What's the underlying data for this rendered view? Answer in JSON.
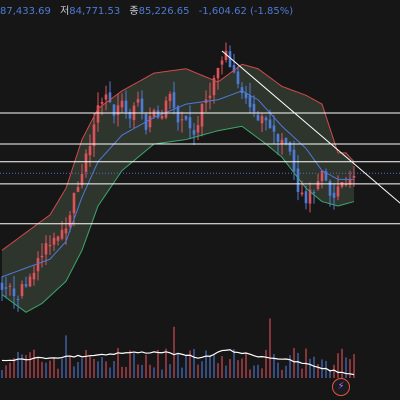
{
  "header": {
    "high_value": "87,433.69",
    "low_label": "저",
    "low_value": "84,771.53",
    "close_label": "종",
    "close_value": "85,226.65",
    "change_text": "-1,604.62 (-1.85%)"
  },
  "colors": {
    "background": "#161616",
    "up_candle": "#e0525a",
    "down_candle": "#4f7ad6",
    "bb_upper": "#d24a4a",
    "bb_lower": "#3aa86a",
    "bb_fill": "#4a5a4a",
    "bb_mid": "#4f7ad6",
    "level_line": "#ffffff",
    "volume_line": "#ffffff",
    "current_price_line": "#5a6ad0"
  },
  "icons": {
    "replay_button": "lightning-bolt-icon"
  },
  "chart_data": {
    "type": "candlestick",
    "indicators": [
      "bollinger_bands",
      "volume"
    ],
    "horizontal_levels": [
      94.5,
      91.0,
      89.0,
      86.5,
      82.0
    ],
    "current_price": 87.7,
    "trendline": {
      "from": [
        55,
        101.5
      ],
      "to": [
        95,
        85.5
      ]
    },
    "ylim": [
      70,
      105
    ],
    "upper_band": [
      [
        0,
        79
      ],
      [
        6,
        81
      ],
      [
        12,
        83
      ],
      [
        16,
        86
      ],
      [
        20,
        91.5
      ],
      [
        24,
        95
      ],
      [
        30,
        97
      ],
      [
        38,
        99
      ],
      [
        46,
        99.5
      ],
      [
        54,
        98
      ],
      [
        60,
        100
      ],
      [
        64,
        99.5
      ],
      [
        70,
        97.5
      ],
      [
        76,
        96.5
      ],
      [
        80,
        95.5
      ],
      [
        84,
        90
      ],
      [
        86,
        90
      ],
      [
        88,
        89
      ]
    ],
    "lower_band": [
      [
        0,
        74
      ],
      [
        6,
        72
      ],
      [
        10,
        73
      ],
      [
        16,
        75.5
      ],
      [
        20,
        79
      ],
      [
        24,
        84
      ],
      [
        30,
        88
      ],
      [
        38,
        91
      ],
      [
        46,
        91.5
      ],
      [
        54,
        92.5
      ],
      [
        60,
        93
      ],
      [
        66,
        91
      ],
      [
        70,
        89.5
      ],
      [
        76,
        86
      ],
      [
        80,
        84.5
      ],
      [
        84,
        84
      ],
      [
        88,
        84.5
      ]
    ],
    "mid_band": [
      [
        0,
        76
      ],
      [
        6,
        77
      ],
      [
        12,
        78
      ],
      [
        16,
        80
      ],
      [
        20,
        85
      ],
      [
        24,
        89
      ],
      [
        30,
        92
      ],
      [
        38,
        94
      ],
      [
        46,
        95.5
      ],
      [
        54,
        96
      ],
      [
        60,
        97
      ],
      [
        64,
        96
      ],
      [
        70,
        93
      ],
      [
        76,
        90.5
      ],
      [
        80,
        88
      ],
      [
        84,
        87
      ],
      [
        88,
        87
      ]
    ],
    "price_path": [
      [
        0,
        75
      ],
      [
        4,
        74
      ],
      [
        8,
        77
      ],
      [
        12,
        80
      ],
      [
        14,
        81
      ],
      [
        16,
        82
      ],
      [
        18,
        85
      ],
      [
        20,
        88
      ],
      [
        22,
        91
      ],
      [
        24,
        95
      ],
      [
        26,
        97
      ],
      [
        28,
        94.5
      ],
      [
        30,
        95.5
      ],
      [
        32,
        94
      ],
      [
        34,
        96
      ],
      [
        36,
        93
      ],
      [
        38,
        95
      ],
      [
        40,
        94
      ],
      [
        42,
        97
      ],
      [
        44,
        93
      ],
      [
        46,
        94
      ],
      [
        48,
        92
      ],
      [
        50,
        95
      ],
      [
        52,
        97
      ],
      [
        54,
        99.5
      ],
      [
        56,
        101
      ],
      [
        58,
        99
      ],
      [
        60,
        97
      ],
      [
        62,
        95
      ],
      [
        64,
        93.5
      ],
      [
        66,
        94
      ],
      [
        68,
        92
      ],
      [
        70,
        91.5
      ],
      [
        72,
        90
      ],
      [
        74,
        86
      ],
      [
        76,
        84.5
      ],
      [
        78,
        86
      ],
      [
        80,
        88
      ],
      [
        82,
        85
      ],
      [
        84,
        86
      ],
      [
        86,
        87
      ],
      [
        88,
        87.7
      ]
    ],
    "volume_envelope": [
      [
        0,
        28
      ],
      [
        10,
        30
      ],
      [
        20,
        32
      ],
      [
        30,
        35
      ],
      [
        40,
        36
      ],
      [
        50,
        30
      ],
      [
        56,
        38
      ],
      [
        60,
        35
      ],
      [
        64,
        32
      ],
      [
        70,
        29
      ],
      [
        76,
        24
      ],
      [
        80,
        20
      ],
      [
        84,
        16
      ],
      [
        88,
        14
      ]
    ]
  }
}
